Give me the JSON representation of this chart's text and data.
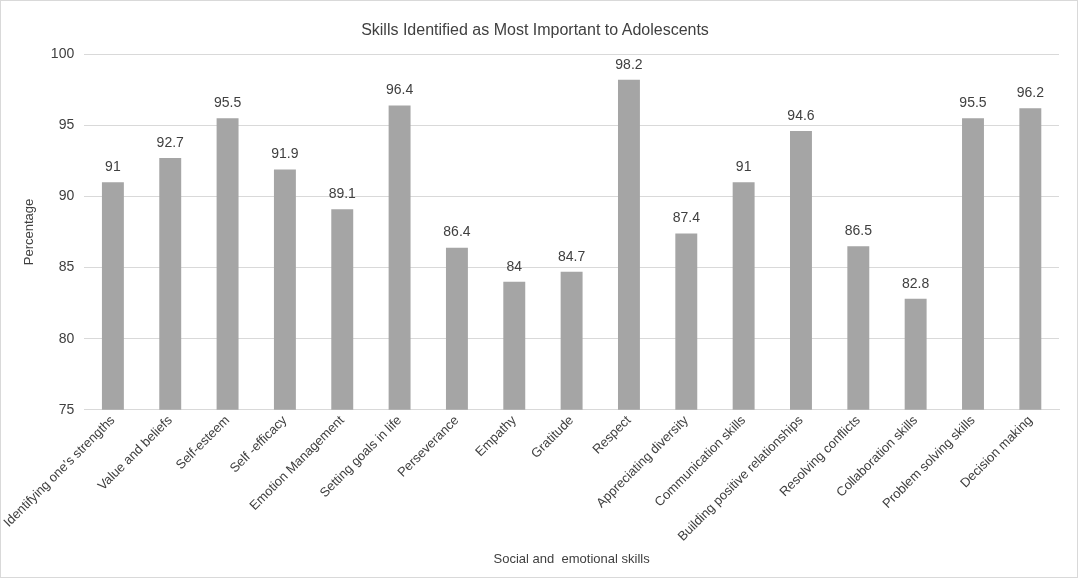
{
  "chart_data": {
    "type": "bar",
    "title": "Skills Identified as Most Important to Adolescents",
    "xlabel": "Social and  emotional skills",
    "ylabel": "Percentage",
    "categories": [
      "Identifying one’s strengths",
      "Value and beliefs",
      "Self-esteem",
      "Self -efficacy",
      "Emotion Management",
      "Setting goals in life",
      "Perseverance",
      "Empathy",
      "Gratitude",
      "Respect",
      "Appreciating diversity",
      "Communication skills",
      "Building positive relationships",
      "Resolving conflicts",
      "Collaboration skills",
      "Problem solving skills",
      "Decision making"
    ],
    "values": [
      91,
      92.7,
      95.5,
      91.9,
      89.1,
      96.4,
      86.4,
      84,
      84.7,
      98.2,
      87.4,
      91,
      94.6,
      86.5,
      82.8,
      95.5,
      96.2
    ],
    "color": "#a5a5a5",
    "ylim": [
      75,
      100
    ],
    "yticks": [
      75,
      80,
      85,
      90,
      95,
      100
    ],
    "grid": "y",
    "data_labels": true
  }
}
